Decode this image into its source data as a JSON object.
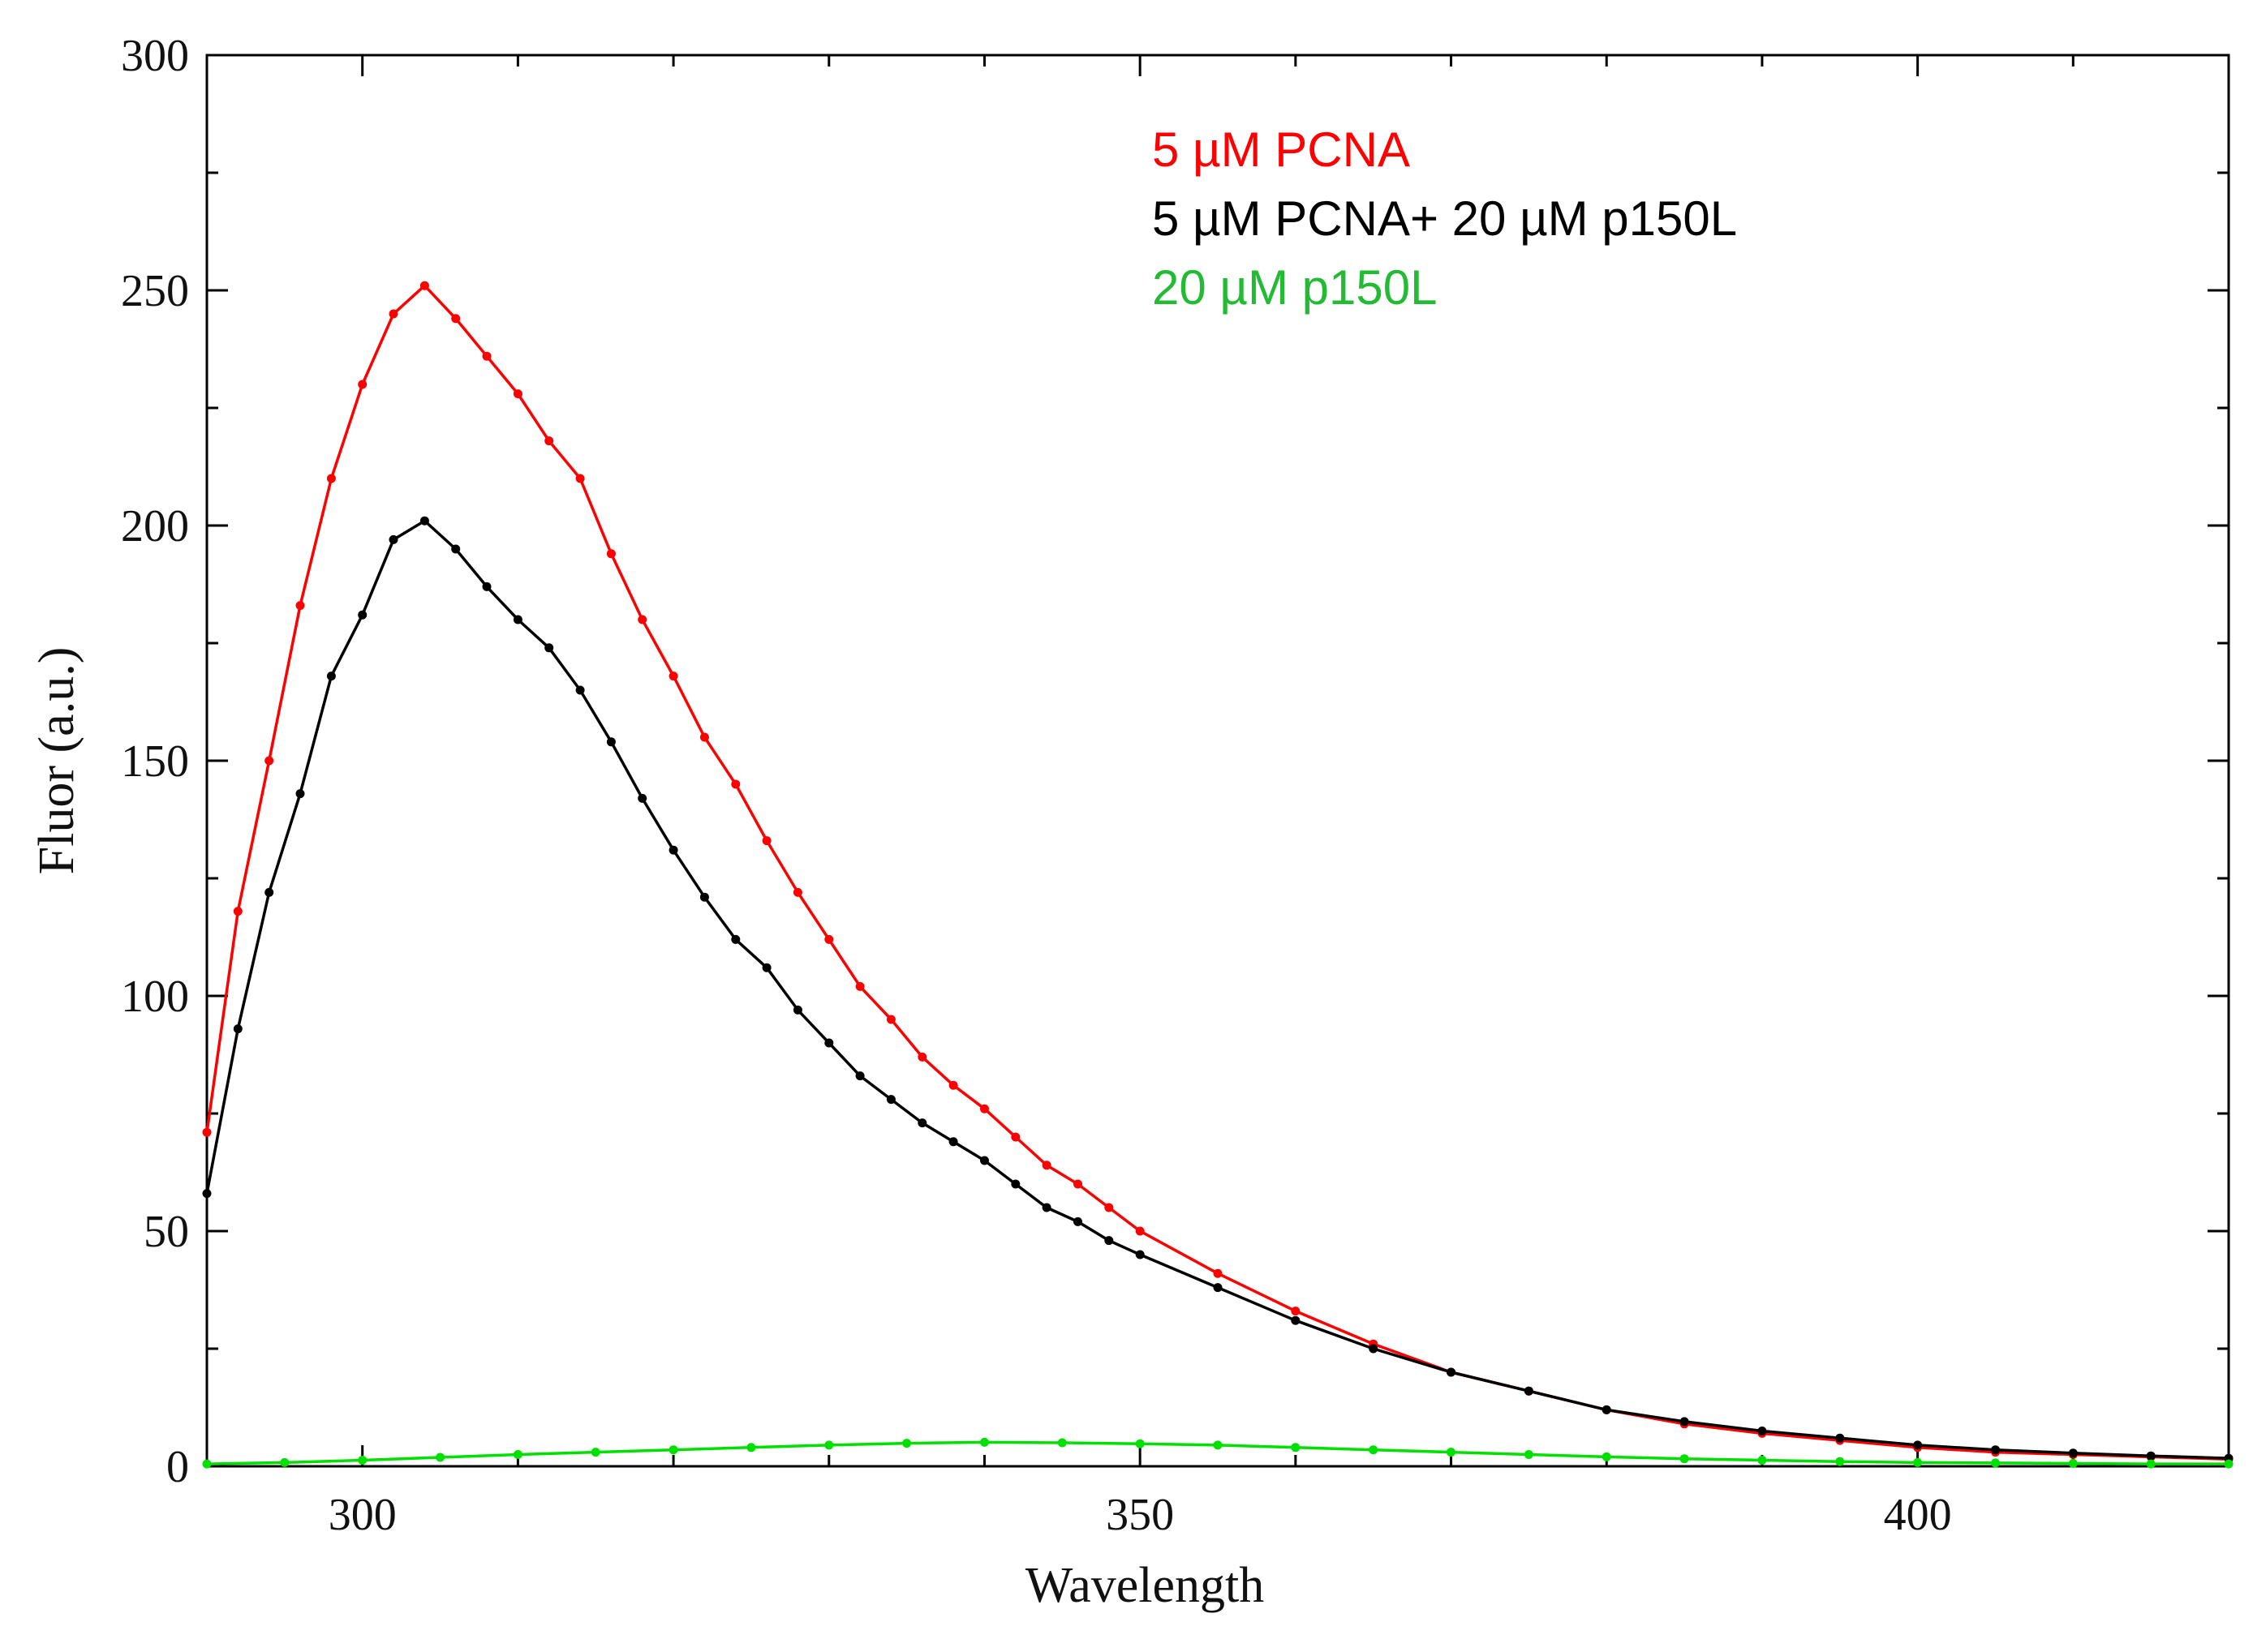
{
  "chart_data": {
    "type": "line",
    "title": "",
    "xlabel": "Wavelength",
    "ylabel": "Fluor (a.u.)",
    "xlim": [
      290,
      420
    ],
    "ylim": [
      0,
      300
    ],
    "x_ticks": [
      300,
      350,
      400
    ],
    "y_ticks": [
      0,
      50,
      100,
      150,
      200,
      250,
      300
    ],
    "x_minor_step": 10,
    "y_minor_step": 25,
    "legend_position": "top-center",
    "grid": false,
    "series": [
      {
        "name": "5 µM PCNA",
        "color": "#ff0000",
        "x": [
          290,
          292,
          294,
          296,
          298,
          300,
          302,
          304,
          306,
          308,
          310,
          312,
          314,
          316,
          318,
          320,
          322,
          324,
          326,
          328,
          330,
          332,
          334,
          336,
          338,
          340,
          342,
          344,
          346,
          348,
          350,
          355,
          360,
          365,
          370,
          375,
          380,
          385,
          390,
          395,
          400,
          405,
          410,
          415,
          420
        ],
        "values": [
          71,
          118,
          150,
          183,
          210,
          230,
          245,
          251,
          244,
          236,
          228,
          218,
          210,
          194,
          180,
          168,
          155,
          145,
          133,
          122,
          112,
          102,
          95,
          87,
          81,
          76,
          70,
          64,
          60,
          55,
          50,
          41,
          33,
          26,
          20,
          16,
          12,
          9,
          7,
          5.5,
          4,
          3,
          2.5,
          2,
          1.5
        ]
      },
      {
        "name": "5 µM PCNA+ 20 µM p150L",
        "color": "#000000",
        "x": [
          290,
          292,
          294,
          296,
          298,
          300,
          302,
          304,
          306,
          308,
          310,
          312,
          314,
          316,
          318,
          320,
          322,
          324,
          326,
          328,
          330,
          332,
          334,
          336,
          338,
          340,
          342,
          344,
          346,
          348,
          350,
          355,
          360,
          365,
          370,
          375,
          380,
          385,
          390,
          395,
          400,
          405,
          410,
          415,
          420
        ],
        "values": [
          58,
          93,
          122,
          143,
          168,
          181,
          197,
          201,
          195,
          187,
          180,
          174,
          165,
          154,
          142,
          131,
          121,
          112,
          106,
          97,
          90,
          83,
          78,
          73,
          69,
          65,
          60,
          55,
          52,
          48,
          45,
          38,
          31,
          25,
          20,
          16,
          12,
          9.5,
          7.5,
          6,
          4.5,
          3.5,
          2.8,
          2.2,
          1.7
        ]
      },
      {
        "name": "20 µM p150L",
        "color": "#00e000",
        "x": [
          290,
          295,
          300,
          305,
          310,
          315,
          320,
          325,
          330,
          335,
          340,
          345,
          350,
          355,
          360,
          365,
          370,
          375,
          380,
          385,
          390,
          395,
          400,
          405,
          410,
          415,
          420
        ],
        "values": [
          0.5,
          0.8,
          1.3,
          1.9,
          2.5,
          3.0,
          3.5,
          4.0,
          4.5,
          4.9,
          5.1,
          5.0,
          4.8,
          4.5,
          4.0,
          3.5,
          3.0,
          2.5,
          2.0,
          1.6,
          1.3,
          1.0,
          0.8,
          0.7,
          0.6,
          0.5,
          0.5
        ]
      }
    ]
  }
}
